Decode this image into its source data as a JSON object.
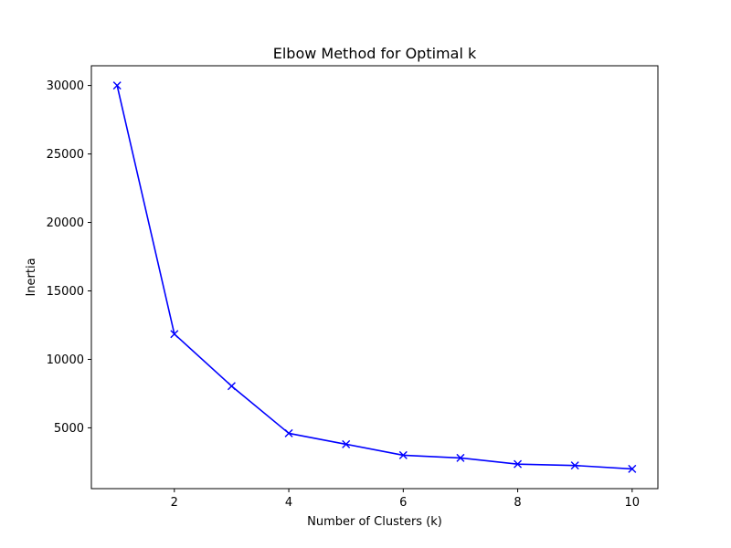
{
  "chart_data": {
    "type": "line",
    "title": "Elbow Method for Optimal k",
    "xlabel": "Number of Clusters (k)",
    "ylabel": "Inertia",
    "xlim": [
      0.55,
      10.45
    ],
    "ylim": [
      560,
      31440
    ],
    "xticks": [
      2,
      4,
      6,
      8,
      10
    ],
    "yticks": [
      5000,
      10000,
      15000,
      20000,
      25000,
      30000
    ],
    "grid": false,
    "series": [
      {
        "x": [
          1,
          2,
          3,
          4,
          5,
          6,
          7,
          8,
          9,
          10
        ],
        "values": [
          30000,
          11850,
          8050,
          4600,
          3800,
          3000,
          2800,
          2350,
          2250,
          2000
        ],
        "color": "#0000ff",
        "marker": "x"
      }
    ]
  }
}
